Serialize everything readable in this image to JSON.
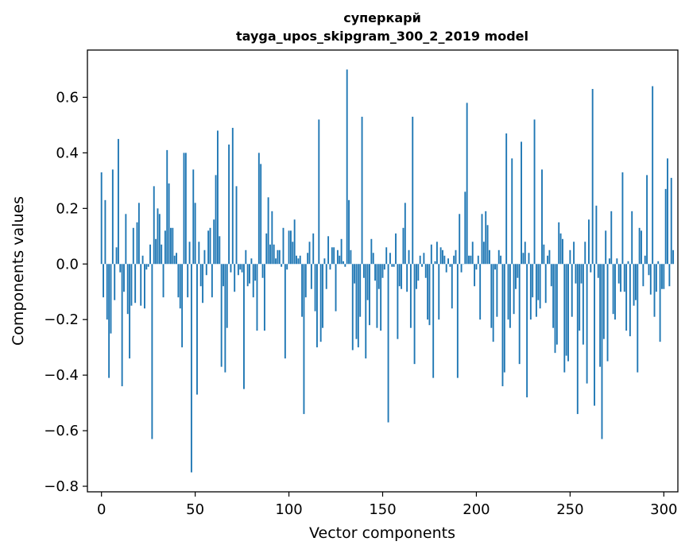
{
  "chart_data": {
    "type": "bar",
    "title": "суперкарй",
    "subtitle": "tayga_upos_skipgram_300_2_2019 model",
    "xlabel": "Vector components",
    "ylabel": "Components values",
    "xlim": [
      -7.5,
      307.5
    ],
    "ylim": [
      -0.82,
      0.77
    ],
    "xticks": [
      0,
      50,
      100,
      150,
      200,
      250,
      300
    ],
    "xtick_labels": [
      "0",
      "50",
      "100",
      "150",
      "200",
      "250",
      "300"
    ],
    "yticks": [
      -0.8,
      -0.6,
      -0.4,
      -0.2,
      0.0,
      0.2,
      0.4,
      0.6
    ],
    "ytick_labels": [
      "−0.8",
      "−0.6",
      "−0.4",
      "−0.2",
      "0.0",
      "0.2",
      "0.4",
      "0.6"
    ],
    "bar_color": "#1f77b4",
    "values": [
      0.33,
      -0.12,
      0.23,
      -0.2,
      -0.41,
      -0.25,
      0.34,
      -0.13,
      0.06,
      0.45,
      -0.03,
      -0.44,
      -0.1,
      0.18,
      -0.18,
      -0.34,
      -0.15,
      0.13,
      -0.14,
      0.15,
      0.22,
      -0.15,
      0.03,
      -0.16,
      -0.02,
      -0.01,
      0.07,
      -0.63,
      0.28,
      0.09,
      0.2,
      0.18,
      0.07,
      -0.12,
      0.12,
      0.41,
      0.29,
      0.13,
      0.13,
      0.03,
      0.04,
      -0.12,
      -0.16,
      -0.3,
      0.4,
      0.4,
      -0.12,
      0.08,
      -0.75,
      0.34,
      0.22,
      -0.47,
      0.08,
      -0.08,
      -0.14,
      0.05,
      -0.04,
      0.12,
      0.13,
      -0.12,
      0.16,
      0.32,
      0.48,
      0.1,
      -0.37,
      -0.08,
      -0.39,
      -0.23,
      0.43,
      -0.03,
      0.49,
      -0.1,
      0.28,
      -0.04,
      -0.02,
      -0.03,
      -0.45,
      0.05,
      -0.08,
      -0.07,
      0.02,
      -0.12,
      -0.06,
      -0.24,
      0.4,
      0.36,
      -0.05,
      -0.24,
      0.11,
      0.24,
      0.07,
      0.19,
      0.07,
      0.02,
      0.05,
      0.05,
      -0.01,
      0.13,
      -0.34,
      -0.02,
      0.12,
      0.12,
      0.08,
      0.16,
      0.03,
      0.02,
      0.03,
      -0.19,
      -0.54,
      -0.12,
      0.04,
      0.08,
      -0.09,
      0.11,
      -0.17,
      -0.3,
      0.52,
      -0.28,
      -0.23,
      0.02,
      -0.09,
      0.1,
      -0.02,
      0.06,
      0.06,
      -0.17,
      0.05,
      0.03,
      0.09,
      0.01,
      -0.01,
      0.7,
      0.23,
      0.05,
      -0.31,
      -0.07,
      -0.27,
      -0.3,
      -0.19,
      0.53,
      -0.05,
      -0.34,
      -0.13,
      -0.22,
      0.09,
      0.04,
      -0.06,
      -0.23,
      -0.09,
      -0.24,
      -0.05,
      -0.02,
      0.06,
      -0.57,
      0.04,
      -0.01,
      -0.01,
      0.11,
      -0.27,
      -0.08,
      -0.09,
      0.13,
      0.22,
      -0.1,
      0.05,
      -0.23,
      0.53,
      -0.36,
      -0.09,
      -0.06,
      0.03,
      -0.01,
      0.04,
      -0.05,
      -0.2,
      -0.22,
      0.07,
      -0.41,
      0.01,
      0.08,
      -0.2,
      0.06,
      0.05,
      0.03,
      -0.03,
      0.02,
      -0.01,
      -0.16,
      0.03,
      0.05,
      -0.41,
      0.18,
      -0.03,
      0.0,
      0.26,
      0.58,
      0.03,
      0.03,
      0.08,
      -0.08,
      -0.02,
      0.03,
      -0.2,
      0.18,
      0.08,
      0.19,
      0.14,
      0.05,
      -0.23,
      -0.28,
      -0.02,
      -0.19,
      0.05,
      0.03,
      -0.44,
      -0.39,
      0.47,
      -0.2,
      -0.23,
      0.38,
      -0.18,
      -0.09,
      -0.05,
      -0.36,
      0.44,
      0.04,
      0.08,
      -0.48,
      0.04,
      -0.2,
      -0.12,
      0.52,
      -0.19,
      -0.13,
      -0.16,
      0.34,
      0.07,
      -0.14,
      0.03,
      0.05,
      -0.08,
      -0.23,
      -0.32,
      -0.29,
      0.15,
      0.11,
      0.09,
      -0.39,
      -0.33,
      -0.35,
      0.05,
      -0.19,
      0.08,
      -0.07,
      -0.54,
      -0.24,
      -0.07,
      -0.29,
      0.08,
      -0.43,
      0.16,
      -0.03,
      0.63,
      -0.51,
      0.21,
      -0.05,
      -0.37,
      -0.63,
      -0.27,
      0.12,
      -0.35,
      0.02,
      0.19,
      -0.18,
      -0.2,
      0.02,
      -0.07,
      -0.1,
      0.33,
      -0.1,
      -0.24,
      0.01,
      -0.26,
      0.19,
      -0.15,
      -0.13,
      -0.39,
      0.13,
      0.12,
      -0.08,
      0.03,
      0.32,
      -0.04,
      -0.11,
      0.64,
      -0.19,
      -0.1,
      0.01,
      -0.28,
      -0.09,
      -0.09,
      0.27,
      0.38,
      -0.08,
      0.31,
      0.05
    ]
  }
}
